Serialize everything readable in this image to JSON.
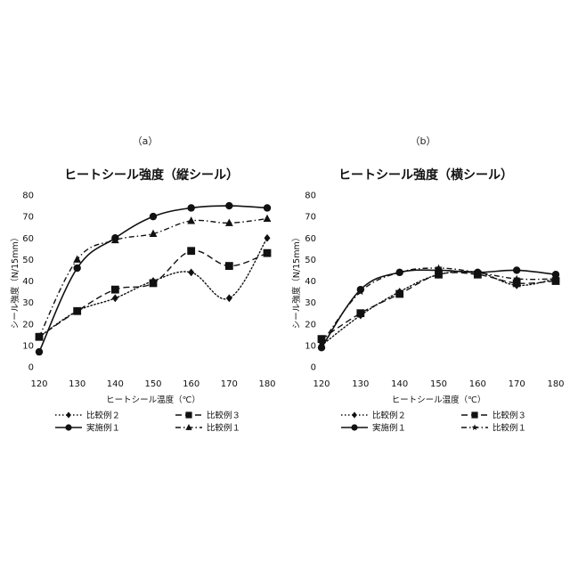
{
  "chart_data": [
    {
      "type": "line",
      "panel_label": "（a）",
      "title": "ヒートシール強度（縦シール）",
      "xlabel": "ヒートシール温度（℃）",
      "ylabel": "シール強度（N/15mm）",
      "x": [
        120,
        130,
        140,
        150,
        160,
        170,
        180
      ],
      "xlim": [
        120,
        180
      ],
      "ylim": [
        0,
        80
      ],
      "yticks": [
        0,
        10,
        20,
        30,
        40,
        50,
        60,
        70,
        80
      ],
      "grid": false,
      "legend_position": "bottom",
      "series": [
        {
          "name": "比較例２",
          "style": "dotted",
          "marker": "diamond",
          "values": [
            14,
            26,
            32,
            40,
            44,
            32,
            60
          ]
        },
        {
          "name": "比較例３",
          "style": "dashed",
          "marker": "square",
          "values": [
            14,
            26,
            36,
            39,
            54,
            47,
            53
          ]
        },
        {
          "name": "実施例１",
          "style": "solid",
          "marker": "circle",
          "values": [
            7,
            46,
            60,
            70,
            74,
            75,
            74
          ]
        },
        {
          "name": "比較例１",
          "style": "dashdot",
          "marker": "triangle",
          "values": [
            14,
            50,
            59,
            62,
            68,
            67,
            69
          ]
        }
      ]
    },
    {
      "type": "line",
      "panel_label": "（b）",
      "title": "ヒートシール強度（横シール）",
      "xlabel": "ヒートシール温度（℃）",
      "ylabel": "シール強度（N/15mm）",
      "x": [
        120,
        130,
        140,
        150,
        160,
        170,
        180
      ],
      "xlim": [
        120,
        180
      ],
      "ylim": [
        0,
        80
      ],
      "yticks": [
        0,
        10,
        20,
        30,
        40,
        50,
        60,
        70,
        80
      ],
      "grid": false,
      "legend_position": "bottom",
      "series": [
        {
          "name": "比較例２",
          "style": "dotted",
          "marker": "diamond",
          "values": [
            10,
            24,
            35,
            43,
            44,
            38,
            41
          ]
        },
        {
          "name": "比較例３",
          "style": "dashed",
          "marker": "square",
          "values": [
            13,
            25,
            34,
            43,
            43,
            39,
            40
          ]
        },
        {
          "name": "実施例１",
          "style": "solid",
          "marker": "circle",
          "values": [
            9,
            36,
            44,
            45,
            44,
            45,
            43
          ]
        },
        {
          "name": "比較例１",
          "style": "dashdot",
          "marker": "star",
          "values": [
            11,
            35,
            44,
            46,
            44,
            41,
            41
          ]
        }
      ]
    }
  ]
}
